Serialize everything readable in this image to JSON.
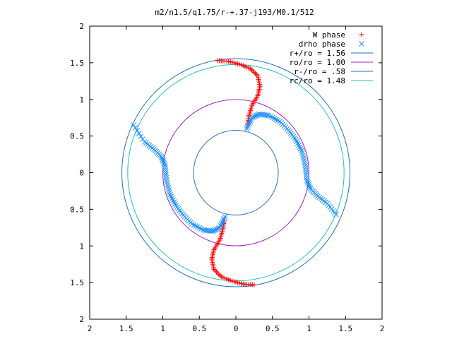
{
  "chart_data": {
    "type": "scatter",
    "title": "m2/n1.5/q1.75/r-+.37-j193/M0.1/512",
    "xlim": [
      -2,
      2
    ],
    "ylim": [
      -2,
      2
    ],
    "x_ticks": [
      "2",
      "1.5",
      "1",
      "0.5",
      "0",
      "0.5",
      "1",
      "1.5",
      "2"
    ],
    "y_ticks": [
      "2",
      "1.5",
      "1",
      "0.5",
      "0",
      "0.5",
      "1",
      "1.5",
      "2"
    ],
    "grid": false,
    "legend_position": "top-right",
    "circles": [
      {
        "name": "r+/ro = 1.56",
        "radius": 1.56,
        "color": "#1f6fbf"
      },
      {
        "name": "ro/ro = 1.00",
        "radius": 1.0,
        "color": "#a020c0"
      },
      {
        "name": "r-/ro = .58",
        "radius": 0.58,
        "color": "#1f6fbf"
      },
      {
        "name": "rc/ro = 1.48",
        "radius": 1.48,
        "color": "#20c0c0"
      }
    ],
    "series": [
      {
        "name": "W phase",
        "marker": "+",
        "color": "#ff0000",
        "arms": [
          [
            [
              -0.25,
              1.53
            ],
            [
              -0.1,
              1.52
            ],
            [
              0.05,
              1.48
            ],
            [
              0.2,
              1.42
            ],
            [
              0.3,
              1.32
            ],
            [
              0.33,
              1.18
            ],
            [
              0.3,
              1.05
            ],
            [
              0.22,
              0.92
            ],
            [
              0.18,
              0.78
            ],
            [
              0.16,
              0.65
            ]
          ],
          [
            [
              0.25,
              -1.53
            ],
            [
              0.1,
              -1.52
            ],
            [
              -0.05,
              -1.48
            ],
            [
              -0.2,
              -1.42
            ],
            [
              -0.3,
              -1.32
            ],
            [
              -0.33,
              -1.18
            ],
            [
              -0.3,
              -1.05
            ],
            [
              -0.22,
              -0.92
            ],
            [
              -0.18,
              -0.78
            ],
            [
              -0.16,
              -0.65
            ]
          ]
        ]
      },
      {
        "name": "drho phase",
        "marker": "x",
        "color": "#1e90ff",
        "arms": [
          [
            [
              0.15,
              0.6
            ],
            [
              0.22,
              0.75
            ],
            [
              0.32,
              0.8
            ],
            [
              0.45,
              0.78
            ],
            [
              0.6,
              0.7
            ],
            [
              0.72,
              0.58
            ],
            [
              0.82,
              0.45
            ],
            [
              0.9,
              0.3
            ],
            [
              0.95,
              0.1
            ],
            [
              0.97,
              -0.1
            ],
            [
              1.02,
              -0.22
            ],
            [
              1.12,
              -0.32
            ],
            [
              1.25,
              -0.42
            ],
            [
              1.37,
              -0.57
            ]
          ],
          [
            [
              -0.15,
              -0.6
            ],
            [
              -0.22,
              -0.75
            ],
            [
              -0.32,
              -0.8
            ],
            [
              -0.45,
              -0.78
            ],
            [
              -0.6,
              -0.7
            ],
            [
              -0.72,
              -0.58
            ],
            [
              -0.82,
              -0.45
            ],
            [
              -0.9,
              -0.3
            ],
            [
              -0.95,
              -0.1
            ],
            [
              -0.97,
              0.1
            ],
            [
              -1.02,
              0.22
            ],
            [
              -1.12,
              0.32
            ],
            [
              -1.25,
              0.42
            ],
            [
              -1.4,
              0.65
            ]
          ]
        ]
      }
    ]
  }
}
